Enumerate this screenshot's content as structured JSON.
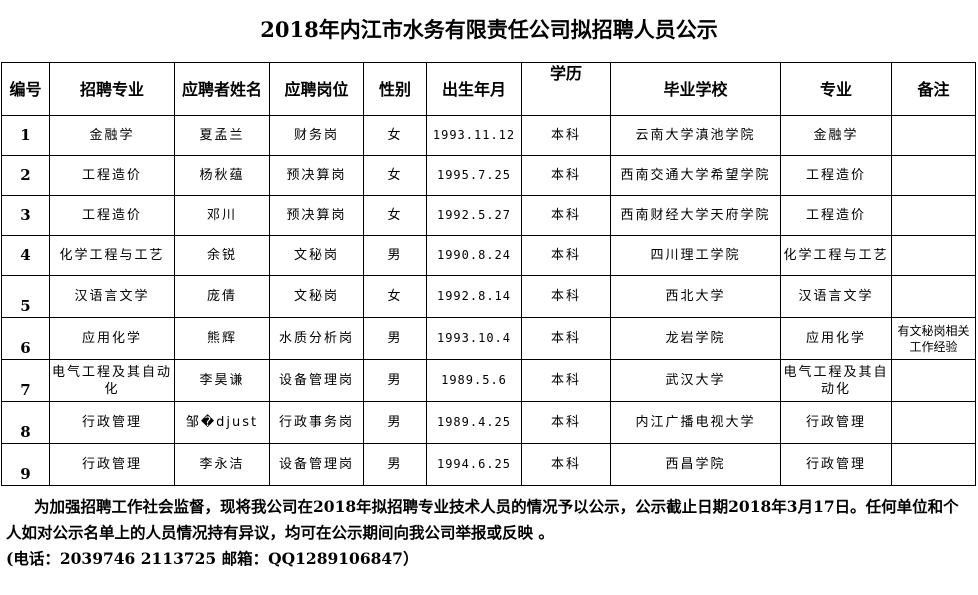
{
  "title": "2018年内江市水务有限责任公司拟招聘人员公示",
  "headers": [
    "编号",
    "招聘专业",
    "应聘者姓名",
    "应聘岗位",
    "性别",
    "出生年月",
    "学历",
    "毕业学校",
    "专业",
    "备注"
  ],
  "rows": [
    [
      "1",
      "金融学",
      "夏孟兰",
      "财务岗",
      "女",
      "1993.11.12",
      "本科",
      "云南大学滇池学院",
      "金融学",
      ""
    ],
    [
      "2",
      "工程造价",
      "杨秋蕴",
      "预决算岗",
      "女",
      "1995.7.25",
      "本科",
      "西南交通大学希望学院",
      "工程造价",
      ""
    ],
    [
      "3",
      "工程造价",
      "邓川",
      "预决算岗",
      "女",
      "1992.5.27",
      "本科",
      "西南财经大学天府学院",
      "工程造价",
      ""
    ],
    [
      "4",
      "化学工程与工艺",
      "余锐",
      "文秘岗",
      "男",
      "1990.8.24",
      "本科",
      "四川理工学院",
      "化学工程与工艺",
      ""
    ],
    [
      "5",
      "汉语言文学",
      "庞倩",
      "文秘岗",
      "女",
      "1992.8.14",
      "本科",
      "西北大学",
      "汉语言文学",
      ""
    ],
    [
      "6",
      "应用化学",
      "熊辉",
      "水质分析岗",
      "男",
      "1993.10.4",
      "本科",
      "龙岩学院",
      "应用化学",
      "有文秘岗相关工作经验"
    ],
    [
      "7",
      "电气工程及其自动化",
      "李昊谦",
      "设备管理岗",
      "男",
      "1989.5.6",
      "本科",
      "武汉大学",
      "电气工程及其自动化",
      ""
    ],
    [
      "8",
      "行政管理",
      "邹�djust",
      "行政事务岗",
      "男",
      "1989.4.25",
      "本科",
      "内江广播电视大学",
      "行政管理",
      ""
    ],
    [
      "9",
      "行政管理",
      "李永洁",
      "设备管理岗",
      "男",
      "1994.6.25",
      "本科",
      "西昌学院",
      "行政管理",
      ""
    ]
  ],
  "footer": {
    "line1": "为加强招聘工作社会监督，现将我公司在2018年拟招聘专业技术人员的情况予以公示，公示截止日期2018年3月17日。任何单位和个人如对公示名单上的人员情况持有异议，均可在公示期间向我公司举报或反映 。",
    "line2": "(电话：2039746    2113725   邮箱：QQ1289106847）"
  }
}
